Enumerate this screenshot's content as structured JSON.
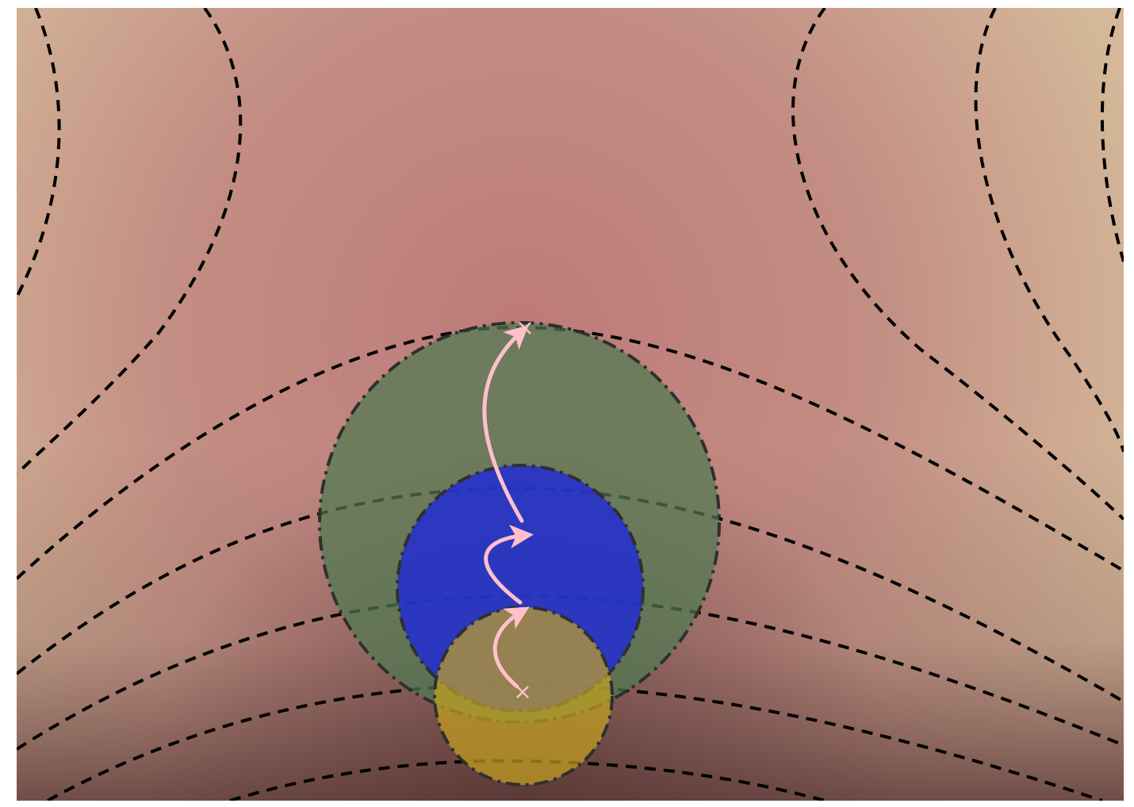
{
  "figure": {
    "kind": "optimization-trust-region-diagram",
    "colors": {
      "background_center": "#bd7b78",
      "background_corner": "#d3b597",
      "background_bottom": "#6e4444",
      "contour_line": "#000000",
      "region_large": "#4f7a50",
      "region_medium": "#1e2ad6",
      "region_small": "#c9a51e",
      "arrow": "#ffc0cb",
      "marker": "#ffc0cb",
      "region_outline": "#2f2f2f"
    },
    "contour_style": "dashed",
    "region_outline_style": "dash-dot",
    "regions": [
      {
        "name": "large-trust-region",
        "color_key": "region_large"
      },
      {
        "name": "medium-trust-region",
        "color_key": "region_medium"
      },
      {
        "name": "small-trust-region",
        "color_key": "region_small"
      }
    ],
    "path": {
      "start_marker": "x",
      "end_marker": "x",
      "steps": 3
    }
  }
}
